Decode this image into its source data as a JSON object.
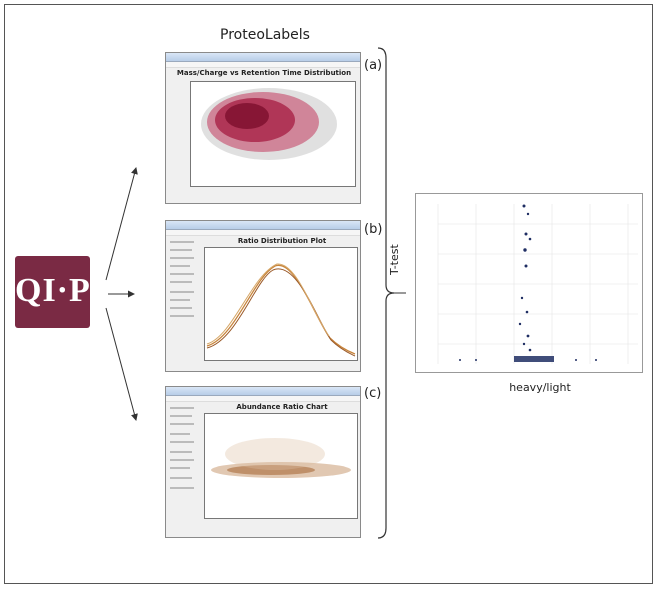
{
  "title": "ProteoLabels",
  "logo_text": "QI·P",
  "labels": [
    "(a)",
    "(b)",
    "(c)"
  ],
  "x_axis_label": "heavy/light",
  "y_axis_label": "T-test",
  "panel_a": {
    "title": "Mass/Charge vs Retention Time Distribution"
  },
  "panel_b": {
    "title": "Ratio Distribution Plot"
  },
  "panel_c": {
    "title": "Abundance Ratio Chart"
  },
  "colors": {
    "logo": "#7a2a44",
    "scatter_a": "#b8204a",
    "line_b": "#c8843a",
    "scatter_c": "#c99a72",
    "volcano": "#1f2e63"
  }
}
